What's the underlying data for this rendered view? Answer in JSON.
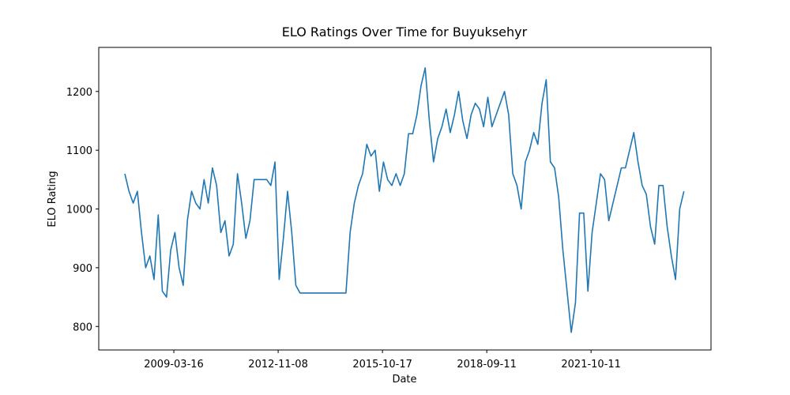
{
  "chart_data": {
    "type": "line",
    "title": "ELO Ratings Over Time for Buyuksehyr",
    "x_label": "Date",
    "y_label": "ELO Rating",
    "x": [
      3,
      7,
      11,
      15,
      19,
      23,
      27,
      31,
      35,
      39,
      43,
      47,
      51,
      55,
      59,
      63,
      67,
      71,
      75,
      79,
      83,
      87,
      91,
      95,
      99,
      103,
      107,
      111,
      115,
      119,
      123,
      127,
      131,
      135,
      139,
      143,
      147,
      151,
      155,
      159,
      163,
      167,
      171,
      175,
      179,
      183,
      187,
      191,
      195,
      199,
      203,
      207,
      211,
      215,
      219,
      223,
      227,
      231,
      235,
      239,
      243,
      247,
      251,
      255,
      259,
      263,
      267,
      271,
      275,
      279,
      283,
      287,
      291,
      295,
      299,
      303,
      307,
      311,
      315,
      319,
      323,
      327,
      331,
      335,
      339,
      343,
      347,
      351,
      355,
      359,
      363,
      367,
      371,
      375,
      379,
      383,
      387,
      391,
      395,
      399,
      403,
      407,
      411,
      415,
      419,
      423,
      427,
      431,
      435,
      439,
      443,
      447,
      451,
      455,
      459,
      463,
      467,
      471,
      475,
      479,
      483,
      487,
      491,
      495,
      499,
      503,
      507,
      511,
      515,
      519,
      523,
      527,
      531,
      535,
      539
    ],
    "series": [
      {
        "name": "ELO Rating",
        "color": "#1f77b4",
        "values": [
          1060,
          1030,
          1010,
          1030,
          960,
          900,
          920,
          880,
          990,
          860,
          850,
          930,
          960,
          900,
          870,
          980,
          1030,
          1010,
          1000,
          1050,
          1010,
          1070,
          1040,
          960,
          980,
          920,
          940,
          1060,
          1010,
          950,
          980,
          1050,
          1050,
          1050,
          1050,
          1040,
          1080,
          880,
          950,
          1030,
          960,
          870,
          857,
          857,
          857,
          857,
          857,
          857,
          857,
          857,
          857,
          857,
          857,
          857,
          960,
          1010,
          1040,
          1060,
          1110,
          1090,
          1100,
          1030,
          1080,
          1050,
          1040,
          1060,
          1040,
          1060,
          1128,
          1128,
          1160,
          1210,
          1240,
          1150,
          1080,
          1120,
          1140,
          1170,
          1130,
          1160,
          1200,
          1150,
          1120,
          1160,
          1180,
          1170,
          1140,
          1190,
          1140,
          1160,
          1180,
          1200,
          1160,
          1060,
          1040,
          1000,
          1080,
          1100,
          1130,
          1110,
          1180,
          1220,
          1080,
          1070,
          1020,
          930,
          860,
          790,
          840,
          993,
          993,
          860,
          960,
          1010,
          1060,
          1050,
          980,
          1010,
          1040,
          1070,
          1070,
          1100,
          1130,
          1080,
          1040,
          1025,
          970,
          940,
          1040,
          1040,
          970,
          920,
          880,
          1000,
          1030
        ]
      }
    ],
    "xlim": [
      -22,
      565
    ],
    "xticks": [
      {
        "value": 50,
        "label": "2009-03-16"
      },
      {
        "value": 150,
        "label": "2012-11-08"
      },
      {
        "value": 250,
        "label": "2015-10-17"
      },
      {
        "value": 350,
        "label": "2018-09-11"
      },
      {
        "value": 450,
        "label": "2021-10-11"
      }
    ],
    "ylim": [
      760,
      1275
    ],
    "yticks": [
      800,
      900,
      1000,
      1100,
      1200
    ],
    "grid": false
  }
}
